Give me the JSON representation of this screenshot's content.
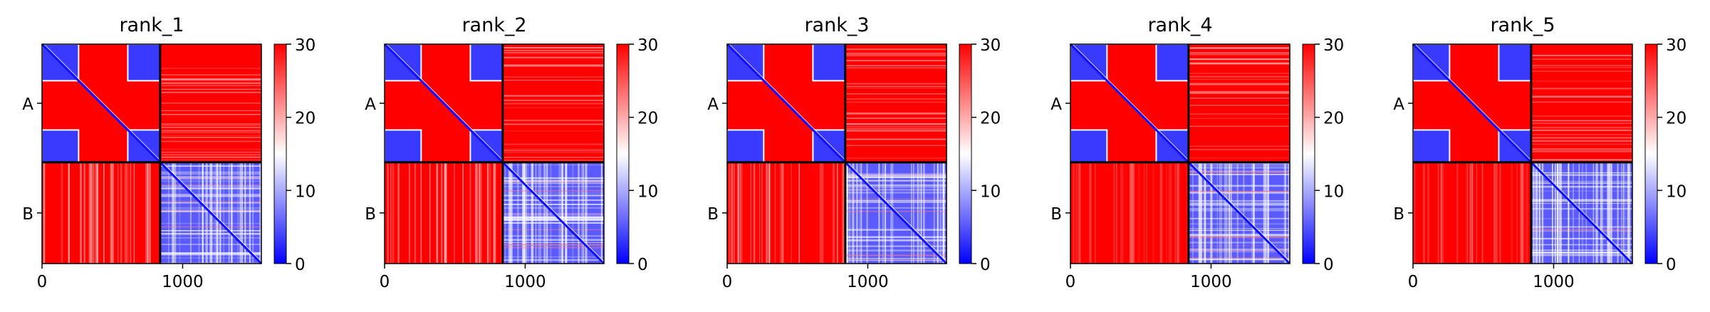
{
  "chart_data": [
    {
      "type": "heatmap",
      "title": "rank_1",
      "chains": [
        "A",
        "B"
      ],
      "chain_boundary": 840,
      "total_length": 1560,
      "x_ticks": [
        0,
        1000
      ],
      "x_tick_labels": [
        "0",
        "1000"
      ],
      "y_tick_labels": [
        "A",
        "B"
      ],
      "colorbar": {
        "min": 0,
        "max": 30,
        "ticks": [
          0,
          10,
          20,
          30
        ],
        "tick_labels": [
          "0",
          "10",
          "20",
          "30"
        ],
        "colors": [
          "#0000ff",
          "#ffffff",
          "#ff0000"
        ]
      },
      "low_error_domains": [
        [
          0,
          260
        ],
        [
          610,
          840
        ],
        [
          840,
          1560
        ]
      ]
    },
    {
      "type": "heatmap",
      "title": "rank_2",
      "chains": [
        "A",
        "B"
      ],
      "chain_boundary": 840,
      "total_length": 1560,
      "x_ticks": [
        0,
        1000
      ],
      "x_tick_labels": [
        "0",
        "1000"
      ],
      "y_tick_labels": [
        "A",
        "B"
      ],
      "colorbar": {
        "min": 0,
        "max": 30,
        "ticks": [
          0,
          10,
          20,
          30
        ],
        "tick_labels": [
          "0",
          "10",
          "20",
          "30"
        ],
        "colors": [
          "#0000ff",
          "#ffffff",
          "#ff0000"
        ]
      },
      "low_error_domains": [
        [
          0,
          260
        ],
        [
          610,
          840
        ],
        [
          840,
          1560
        ]
      ]
    },
    {
      "type": "heatmap",
      "title": "rank_3",
      "chains": [
        "A",
        "B"
      ],
      "chain_boundary": 840,
      "total_length": 1560,
      "x_ticks": [
        0,
        1000
      ],
      "x_tick_labels": [
        "0",
        "1000"
      ],
      "y_tick_labels": [
        "A",
        "B"
      ],
      "colorbar": {
        "min": 0,
        "max": 30,
        "ticks": [
          0,
          10,
          20,
          30
        ],
        "tick_labels": [
          "0",
          "10",
          "20",
          "30"
        ],
        "colors": [
          "#0000ff",
          "#ffffff",
          "#ff0000"
        ]
      },
      "low_error_domains": [
        [
          0,
          260
        ],
        [
          610,
          840
        ],
        [
          840,
          1560
        ]
      ]
    },
    {
      "type": "heatmap",
      "title": "rank_4",
      "chains": [
        "A",
        "B"
      ],
      "chain_boundary": 840,
      "total_length": 1560,
      "x_ticks": [
        0,
        1000
      ],
      "x_tick_labels": [
        "0",
        "1000"
      ],
      "y_tick_labels": [
        "A",
        "B"
      ],
      "colorbar": {
        "min": 0,
        "max": 30,
        "ticks": [
          0,
          10,
          20,
          30
        ],
        "tick_labels": [
          "0",
          "10",
          "20",
          "30"
        ],
        "colors": [
          "#0000ff",
          "#ffffff",
          "#ff0000"
        ]
      },
      "low_error_domains": [
        [
          0,
          260
        ],
        [
          610,
          840
        ],
        [
          840,
          1560
        ]
      ]
    },
    {
      "type": "heatmap",
      "title": "rank_5",
      "chains": [
        "A",
        "B"
      ],
      "chain_boundary": 840,
      "total_length": 1560,
      "x_ticks": [
        0,
        1000
      ],
      "x_tick_labels": [
        "0",
        "1000"
      ],
      "y_tick_labels": [
        "A",
        "B"
      ],
      "colorbar": {
        "min": 0,
        "max": 30,
        "ticks": [
          0,
          10,
          20,
          30
        ],
        "tick_labels": [
          "0",
          "10",
          "20",
          "30"
        ],
        "colors": [
          "#0000ff",
          "#ffffff",
          "#ff0000"
        ]
      },
      "low_error_domains": [
        [
          0,
          260
        ],
        [
          610,
          840
        ],
        [
          840,
          1560
        ]
      ]
    }
  ]
}
